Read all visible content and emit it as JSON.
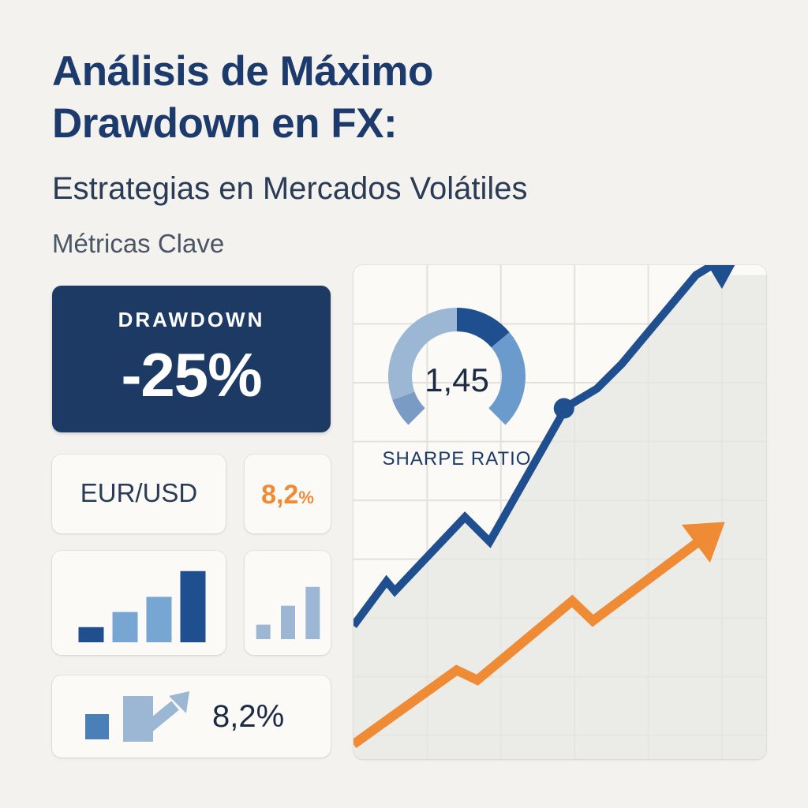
{
  "header": {
    "title_line1": "Análisis de Máximo",
    "title_line2": "Drawdown en FX:",
    "subtitle": "Estrategias en Mercados Volátiles",
    "section_label": "Métricas Clave"
  },
  "drawdown": {
    "label": "DRAWDOWN",
    "value": "-25%"
  },
  "pair": {
    "label": "EUR/USD"
  },
  "pair_change": {
    "value": "8,2",
    "unit": "%"
  },
  "trend_metric": {
    "value": "8,2%"
  },
  "sharpe": {
    "value": "1,45",
    "label": "SHARPE RATIO",
    "fill_fraction": 0.5
  },
  "colors": {
    "navy": "#1c3a64",
    "blue": "#1f4f8f",
    "mid_blue": "#5d8fc0",
    "light_blue": "#9cb7d4",
    "orange": "#ef8a35"
  },
  "chart_data": [
    {
      "type": "bar",
      "series": [
        {
          "values": [
            1,
            2,
            3,
            4.7
          ]
        }
      ],
      "colors": [
        "#1f4f8f",
        "#78a6d2",
        "#78a6d2",
        "#1f4f8f"
      ],
      "ylim": [
        0,
        5
      ]
    },
    {
      "type": "bar",
      "series": [
        {
          "values": [
            1,
            2.3,
            3.6
          ]
        }
      ],
      "colors": [
        "#9cb7d4",
        "#9cb7d4",
        "#9cb7d4"
      ],
      "ylim": [
        0,
        5
      ]
    },
    {
      "type": "line",
      "grid": true,
      "xlim": [
        0,
        10
      ],
      "ylim": [
        0,
        10
      ],
      "series": [
        {
          "color": "#1f4f8f",
          "x": [
            0,
            0.8,
            1.0,
            2.7,
            3.3,
            5.0,
            5.1,
            5.9,
            6.5,
            8.3,
            9.5
          ],
          "y": [
            2.7,
            3.6,
            3.4,
            4.9,
            4.4,
            6.9,
            7.1,
            7.5,
            8.0,
            9.8,
            10.4
          ],
          "marker_at_index": 6
        },
        {
          "color": "#ef8a35",
          "x": [
            0,
            2.5,
            3.0,
            5.3,
            5.8,
            9.0
          ],
          "y": [
            0.3,
            1.8,
            1.6,
            3.2,
            2.8,
            4.8
          ]
        }
      ]
    }
  ]
}
